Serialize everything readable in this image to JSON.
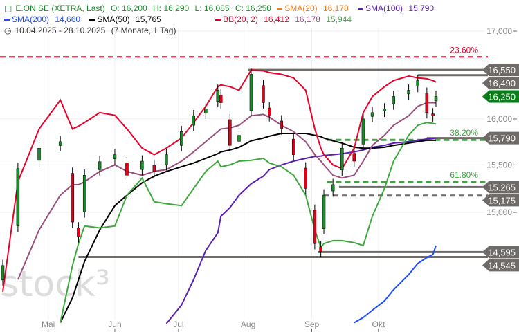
{
  "header": {
    "title": "E.ON SE (XETRA, Last)",
    "open": "O: 16,200",
    "high": "H: 16,290",
    "low": "L: 16,085",
    "close": "C: 16,250",
    "indicators": [
      {
        "label": "SMA(20)",
        "value": "16,178",
        "color": "#f07d1a"
      },
      {
        "label": "SMA(100)",
        "value": "15,790",
        "color": "#5a1fb0"
      },
      {
        "label": "SMA(200)",
        "value": "14,660",
        "color": "#1f4cff"
      },
      {
        "label": "SMA(50)",
        "value": "15,765",
        "color": "#000000"
      }
    ],
    "bb": {
      "label": "BB(20, 2)",
      "upper": "16,412",
      "middle": "16,178",
      "lower": "15,944",
      "color": "#e8002a",
      "middle_color": "#9a4f7c",
      "lower_color": "#3ea83e"
    },
    "range": "10.04.2025 - 28.10.2025",
    "duration": "(7 Monate, 1 Tag)",
    "icon": "candlestick-icon",
    "range_icon": "clock-icon",
    "title_color": "#1a8c2a"
  },
  "watermark": "stock³",
  "chart_data": {
    "type": "candlestick",
    "y_scale": "log",
    "ylim": [
      13900,
      17200
    ],
    "grid": true,
    "y_ticks": [
      {
        "v": 17000,
        "label": "17,000"
      },
      {
        "v": 16000,
        "label": "16,000"
      },
      {
        "v": 15500,
        "label": "15,500"
      },
      {
        "v": 15000,
        "label": "15,000"
      }
    ],
    "x_ticks": [
      {
        "date": "2025-05-01",
        "label": "Mai"
      },
      {
        "date": "2025-06-02",
        "label": "Jun"
      },
      {
        "date": "2025-07-01",
        "label": "Jul"
      },
      {
        "date": "2025-08-01",
        "label": "Aug"
      },
      {
        "date": "2025-09-01",
        "label": "Sep"
      },
      {
        "date": "2025-10-01",
        "label": "Okt"
      }
    ],
    "dates": [
      "2025-04-10",
      "2025-04-17",
      "2025-04-28",
      "2025-05-07",
      "2025-05-13",
      "2025-05-15",
      "2025-05-19",
      "2025-05-26",
      "2025-06-02",
      "2025-06-06",
      "2025-06-13",
      "2025-06-19",
      "2025-06-25",
      "2025-07-02",
      "2025-07-08",
      "2025-07-14",
      "2025-07-18",
      "2025-07-21",
      "2025-07-24",
      "2025-07-29",
      "2025-08-04",
      "2025-08-08",
      "2025-08-12",
      "2025-08-18",
      "2025-08-22",
      "2025-08-28",
      "2025-09-02",
      "2025-09-04",
      "2025-09-05",
      "2025-09-10",
      "2025-09-15",
      "2025-09-19",
      "2025-09-24",
      "2025-09-29",
      "2025-10-03",
      "2025-10-08",
      "2025-10-15",
      "2025-10-20",
      "2025-10-23",
      "2025-10-27",
      "2025-10-28"
    ],
    "close": [
      14460,
      15460,
      15680,
      15750,
      14900,
      14750,
      15390,
      15535,
      15610,
      15390,
      15540,
      15430,
      15610,
      15860,
      16035,
      16110,
      16320,
      16180,
      15710,
      15820,
      16500,
      16180,
      16035,
      15890,
      15610,
      15250,
      14680,
      14600,
      15180,
      15290,
      15680,
      15540,
      16000,
      16070,
      16110,
      16250,
      16320,
      16430,
      16070,
      16035,
      16250
    ],
    "last_candle": {
      "open": 16200,
      "high": 16290,
      "low": 16085,
      "close": 16250
    },
    "series": [
      {
        "name": "SMA(200)",
        "color": "#1f4cff",
        "values": [
          null,
          null,
          null,
          null,
          null,
          null,
          null,
          null,
          null,
          null,
          null,
          null,
          null,
          null,
          null,
          null,
          null,
          null,
          null,
          null,
          null,
          null,
          null,
          null,
          null,
          null,
          null,
          null,
          null,
          null,
          null,
          13900,
          13950,
          14020,
          14110,
          14220,
          14370,
          14480,
          14540,
          14570,
          14660
        ]
      },
      {
        "name": "SMA(100)",
        "color": "#5a1fb0",
        "values": [
          null,
          null,
          null,
          null,
          null,
          null,
          null,
          null,
          null,
          null,
          null,
          null,
          13890,
          14070,
          14320,
          14610,
          14790,
          14960,
          15050,
          15180,
          15300,
          15380,
          15450,
          15500,
          15540,
          15570,
          15590,
          15595,
          15600,
          15610,
          15620,
          15640,
          15660,
          15690,
          15710,
          15735,
          15750,
          15765,
          15780,
          15785,
          15790
        ]
      },
      {
        "name": "SMA(50)",
        "color": "#000000",
        "values": [
          null,
          null,
          null,
          13900,
          14140,
          14320,
          14500,
          14820,
          15070,
          15180,
          15310,
          15380,
          15430,
          15480,
          15520,
          15570,
          15620,
          15640,
          15660,
          15690,
          15760,
          15790,
          15810,
          15840,
          15840,
          15840,
          15820,
          15805,
          15790,
          15760,
          15735,
          15690,
          15680,
          15680,
          15690,
          15710,
          15735,
          15750,
          15765,
          15765,
          15765
        ]
      },
      {
        "name": "BB upper",
        "color": "#e8002a",
        "values": [
          14200,
          15320,
          15890,
          16210,
          15890,
          15920,
          15960,
          16070,
          16040,
          15890,
          15680,
          15610,
          15680,
          15790,
          15960,
          16140,
          16360,
          16380,
          16360,
          16320,
          16550,
          16540,
          16520,
          16500,
          16460,
          16320,
          15890,
          15680,
          15610,
          15500,
          15460,
          15680,
          16070,
          16250,
          16360,
          16430,
          16480,
          16460,
          16450,
          16430,
          16412
        ]
      },
      {
        "name": "BB middle",
        "color": "#9a4f7c",
        "values": [
          null,
          14320,
          14820,
          15180,
          15290,
          15290,
          15320,
          15430,
          15500,
          15430,
          15390,
          15430,
          15450,
          15540,
          15640,
          15750,
          15860,
          15890,
          15900,
          15930,
          16035,
          16050,
          16020,
          15930,
          15860,
          15750,
          15610,
          15540,
          15500,
          15390,
          15360,
          15390,
          15540,
          15710,
          15820,
          15930,
          16035,
          16140,
          16180,
          16180,
          16178
        ]
      },
      {
        "name": "BB lower",
        "color": "#3ea83e",
        "values": [
          null,
          null,
          null,
          13900,
          14460,
          14680,
          14860,
          14840,
          14860,
          15180,
          15360,
          15110,
          15090,
          15070,
          15250,
          15430,
          15540,
          15480,
          15500,
          15540,
          15550,
          15570,
          15520,
          15480,
          15390,
          15180,
          14820,
          14640,
          14680,
          14710,
          14710,
          14690,
          14660,
          14960,
          15250,
          15540,
          15820,
          15930,
          15960,
          15950,
          15944
        ]
      }
    ],
    "levels": [
      {
        "value": 16700,
        "label": "23.60%",
        "style": "dashed",
        "color": "#e8002a",
        "label_color": "#e8002a"
      },
      {
        "value": 16550,
        "label": "16,550",
        "style": "solid",
        "color": "#6f6b68",
        "from": "2025-08-01"
      },
      {
        "value": 16490,
        "label": "16,490",
        "style": "solid",
        "color": "#6f6b68",
        "from": "2025-10-20"
      },
      {
        "value": 15790,
        "label": "15,790",
        "style": "solid",
        "color": "#6f6b68",
        "from": "2025-10-23"
      },
      {
        "value": 15770,
        "label": "38.20%",
        "style": "dashed",
        "color": "#3ea83e",
        "label_color": "#3ea83e",
        "from": "2025-09-08"
      },
      {
        "value": 15320,
        "label": "61.80%",
        "style": "dashed",
        "color": "#3ea83e",
        "label_color": "#3ea83e",
        "from": "2025-09-08"
      },
      {
        "value": 15265,
        "label": "15.265",
        "style": "solid",
        "color": "#6f6b68",
        "from": "2025-09-12"
      },
      {
        "value": 15175,
        "label": "15,175",
        "style": "dashed",
        "color": "#6f6b68",
        "from": "2025-09-05"
      },
      {
        "value": 14595,
        "label": "14,595",
        "style": "solid",
        "color": "#6f6b68",
        "from": "2025-09-03"
      },
      {
        "value": 14545,
        "label": "14,545",
        "style": "solid",
        "color": "#6f6b68",
        "from": "2025-05-15"
      }
    ],
    "current_price": {
      "value": 16250,
      "label": "16,250",
      "color": "#0a7d18"
    },
    "up_color": "#1a8c2a",
    "down_color": "#e0001a"
  }
}
